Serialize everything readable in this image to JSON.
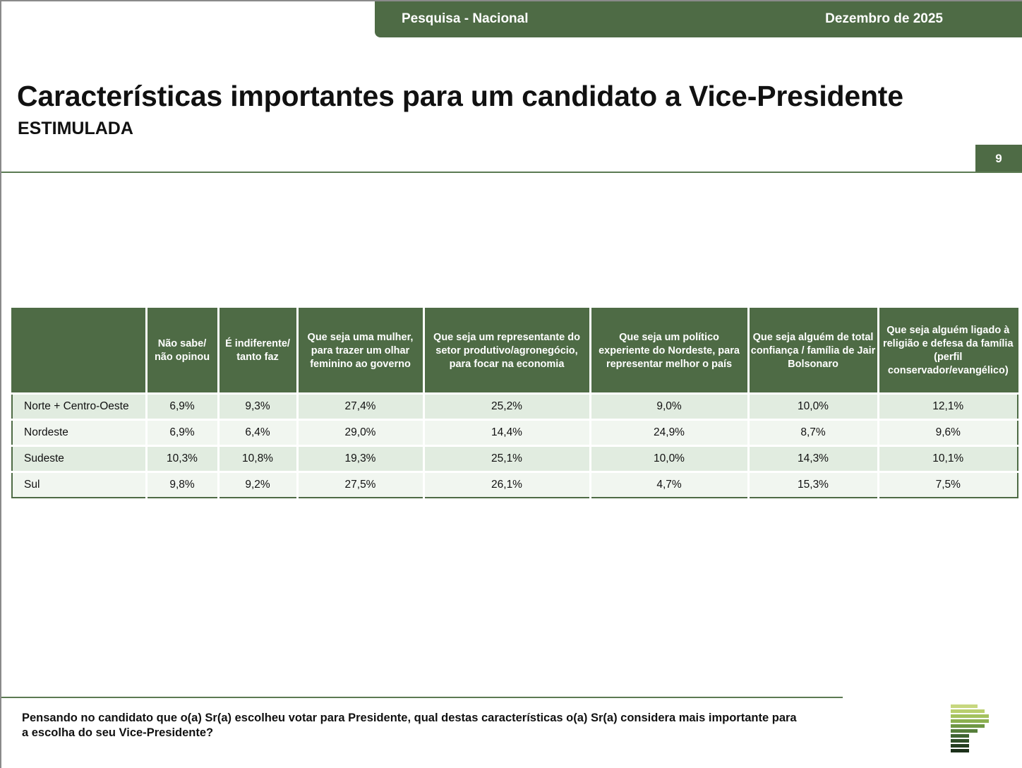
{
  "header": {
    "left_label": "Pesquisa - Nacional",
    "right_label": "Dezembro de 2025",
    "title": "Características importantes para um candidato a Vice-Presidente",
    "subtitle": "ESTIMULADA",
    "page_number": "9"
  },
  "table": {
    "columns": [
      "",
      "Não sabe/ não opinou",
      "É indiferente/ tanto faz",
      "Que seja uma mulher, para trazer um olhar feminino ao governo",
      "Que seja um representante do setor produtivo/agronegócio, para focar na economia",
      "Que seja um político experiente do Nordeste, para representar melhor o país",
      "Que seja alguém de total confiança / família de Jair Bolsonaro",
      "Que seja alguém ligado à religião e defesa da família (perfil conservador/evangélico)"
    ],
    "rows": [
      [
        "Norte + Centro-Oeste",
        "6,9%",
        "9,3%",
        "27,4%",
        "25,2%",
        "9,0%",
        "10,0%",
        "12,1%"
      ],
      [
        "Nordeste",
        "6,9%",
        "6,4%",
        "29,0%",
        "14,4%",
        "24,9%",
        "8,7%",
        "9,6%"
      ],
      [
        "Sudeste",
        "10,3%",
        "10,8%",
        "19,3%",
        "25,1%",
        "10,0%",
        "14,3%",
        "10,1%"
      ],
      [
        "Sul",
        "9,8%",
        "9,2%",
        "27,5%",
        "26,1%",
        "4,7%",
        "15,3%",
        "7,5%"
      ]
    ]
  },
  "footer": {
    "question": "Pensando no candidato que o(a) Sr(a) escolheu votar para Presidente, qual destas características o(a) Sr(a) considera mais importante para a escolha do seu Vice-Presidente?"
  },
  "colors": {
    "brand_green": "#4e6b45",
    "row_tint_a": "#e1ece0",
    "row_tint_b": "#f1f6f0"
  }
}
